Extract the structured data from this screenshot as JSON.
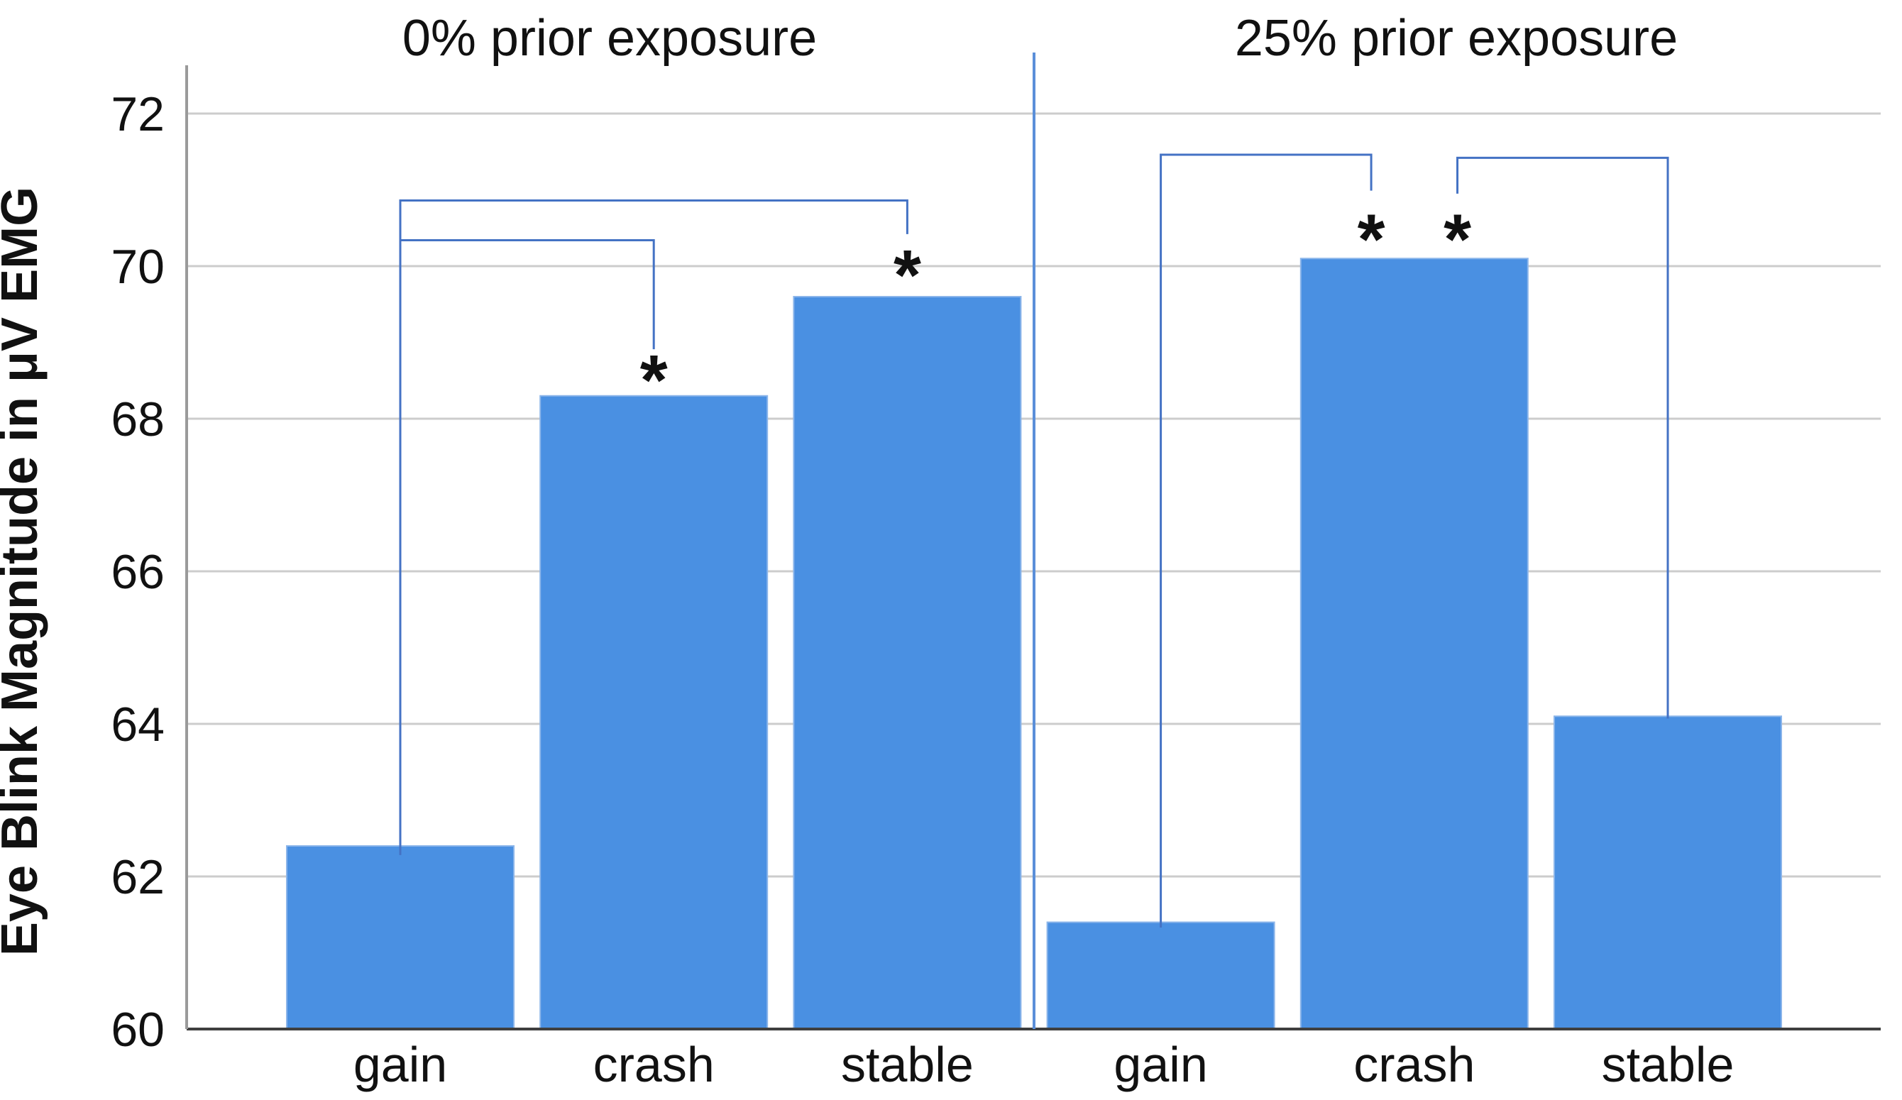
{
  "chart_data": {
    "type": "bar",
    "title": "",
    "ylabel": "Eye Blink Magnitude in μV EMG",
    "xlabel": "",
    "ylim": [
      60,
      72.8
    ],
    "yticks": [
      60,
      62,
      64,
      66,
      68,
      70,
      72
    ],
    "grid": "horizontal",
    "legend": "none",
    "bar_color": "#4a90e2",
    "bar_edge_color": "#8bb5ea",
    "bracket_color": "#4472c4",
    "divider_color": "#5b8fd9",
    "gridline_color": "#cccccc",
    "x_axis_color": "#3f3f3f",
    "y_axis_color": "#9a9a9a",
    "panels": [
      {
        "title": "0% prior exposure",
        "categories": [
          "gain",
          "crash",
          "stable"
        ],
        "values": [
          62.4,
          68.3,
          69.6
        ]
      },
      {
        "title": "25% prior exposure",
        "categories": [
          "gain",
          "crash",
          "stable"
        ],
        "values": [
          61.4,
          70.1,
          64.1
        ]
      }
    ],
    "panel_divider": {
      "x_slot": 2.5,
      "top_value": 72.8
    },
    "significance_brackets": [
      {
        "compares": [
          "0% gain",
          "0% stable"
        ],
        "points": [
          [
            0,
            62.28
          ],
          [
            0,
            70.86
          ],
          [
            2,
            70.86
          ],
          [
            2,
            70.42
          ]
        ]
      },
      {
        "compares": [
          "0% gain",
          "0% crash"
        ],
        "points": [
          [
            0,
            70.34
          ],
          [
            1,
            70.34
          ],
          [
            1,
            68.91
          ]
        ]
      },
      {
        "compares": [
          "25% gain",
          "25% crash"
        ],
        "points": [
          [
            3,
            61.33
          ],
          [
            3,
            71.46
          ],
          [
            3.83,
            71.46
          ],
          [
            3.83,
            70.99
          ]
        ]
      },
      {
        "compares": [
          "25% crash",
          "25% stable"
        ],
        "points": [
          [
            4.17,
            70.95
          ],
          [
            4.17,
            71.42
          ],
          [
            5,
            71.42
          ],
          [
            5,
            64.07
          ]
        ]
      }
    ],
    "significance_markers": [
      {
        "label": "*",
        "x_slot": 1,
        "value": 68.65
      },
      {
        "label": "*",
        "x_slot": 2,
        "value": 70.03
      },
      {
        "label": "*",
        "x_slot": 3.83,
        "value": 70.5
      },
      {
        "label": "*",
        "x_slot": 4.17,
        "value": 70.5
      }
    ]
  }
}
